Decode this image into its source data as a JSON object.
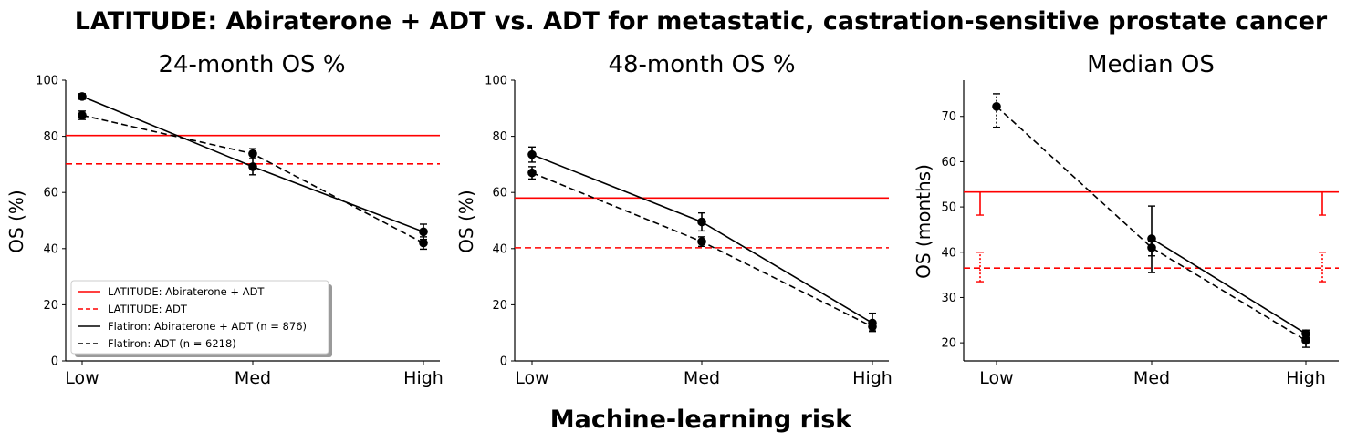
{
  "figure": {
    "title": "LATITUDE: Abiraterone + ADT vs. ADT for metastatic, castration-sensitive prostate cancer",
    "xlabel": "Machine-learning risk"
  },
  "legend": {
    "placement": "lower-left of first panel",
    "entries": [
      {
        "label": "LATITUDE: Abiraterone + ADT",
        "color": "#ff0000",
        "dash": "solid"
      },
      {
        "label": "LATITUDE: ADT",
        "color": "#ff0000",
        "dash": "dashed"
      },
      {
        "label": "Flatiron: Abiraterone + ADT (n = 876)",
        "color": "#000000",
        "dash": "solid"
      },
      {
        "label": "Flatiron: ADT (n = 6218)",
        "color": "#000000",
        "dash": "dashed"
      }
    ]
  },
  "chart_data": [
    {
      "type": "line",
      "title": "24-month OS %",
      "ylabel": "OS (%)",
      "categories": [
        "Low",
        "Med",
        "High"
      ],
      "ylim": [
        0,
        100
      ],
      "yticks": [
        0,
        20,
        40,
        60,
        80,
        100
      ],
      "series": [
        {
          "name": "Flatiron: Abiraterone + ADT (n = 876)",
          "color": "#000000",
          "dash": "solid",
          "values": [
            94.2,
            69.2,
            46.0
          ],
          "err_low": [
            93.2,
            66.3,
            43.3
          ],
          "err_high": [
            95.2,
            72.1,
            48.7
          ]
        },
        {
          "name": "Flatiron: ADT (n = 6218)",
          "color": "#000000",
          "dash": "dashed",
          "values": [
            87.5,
            73.8,
            42.0
          ],
          "err_low": [
            86.0,
            72.0,
            39.8
          ],
          "err_high": [
            89.0,
            75.6,
            44.2
          ]
        }
      ],
      "reference_lines": [
        {
          "name": "LATITUDE: Abiraterone + ADT",
          "value": 80.3,
          "color": "#ff0000",
          "dash": "solid"
        },
        {
          "name": "LATITUDE: ADT",
          "value": 70.2,
          "color": "#ff0000",
          "dash": "dashed"
        }
      ]
    },
    {
      "type": "line",
      "title": "48-month OS %",
      "ylabel": "OS (%)",
      "categories": [
        "Low",
        "Med",
        "High"
      ],
      "ylim": [
        0,
        100
      ],
      "yticks": [
        0,
        20,
        40,
        60,
        80,
        100
      ],
      "series": [
        {
          "name": "Flatiron: Abiraterone + ADT (n = 876)",
          "color": "#000000",
          "dash": "solid",
          "values": [
            73.5,
            49.5,
            13.5
          ],
          "err_low": [
            70.8,
            46.3,
            10.5
          ],
          "err_high": [
            76.2,
            52.7,
            17.0
          ]
        },
        {
          "name": "Flatiron: ADT (n = 6218)",
          "color": "#000000",
          "dash": "dashed",
          "values": [
            67.0,
            42.5,
            12.2
          ],
          "err_low": [
            64.8,
            40.8,
            10.7
          ],
          "err_high": [
            69.2,
            44.2,
            13.7
          ]
        }
      ],
      "reference_lines": [
        {
          "name": "LATITUDE: Abiraterone + ADT",
          "value": 58.0,
          "color": "#ff0000",
          "dash": "solid"
        },
        {
          "name": "LATITUDE: ADT",
          "value": 40.3,
          "color": "#ff0000",
          "dash": "dashed"
        }
      ]
    },
    {
      "type": "line",
      "title": "Median OS",
      "ylabel": "OS (months)",
      "categories": [
        "Low",
        "Med",
        "High"
      ],
      "ylim": [
        16,
        78
      ],
      "yticks": [
        20,
        30,
        40,
        50,
        60,
        70
      ],
      "series": [
        {
          "name": "Flatiron: Abiraterone + ADT (n = 876)",
          "color": "#000000",
          "dash": "solid",
          "values": [
            null,
            43.0,
            22.0
          ],
          "err_low": [
            null,
            39.2,
            21.2
          ],
          "err_high": [
            null,
            50.2,
            22.8
          ]
        },
        {
          "name": "Flatiron: ADT (n = 6218)",
          "color": "#000000",
          "dash": "dashed",
          "values": [
            72.2,
            41.0,
            20.5
          ],
          "err_low": [
            67.6,
            35.5,
            19.0
          ],
          "err_high": [
            75.0,
            42.5,
            21.2
          ]
        }
      ],
      "reference_lines": [
        {
          "name": "LATITUDE: Abiraterone + ADT",
          "value": 53.3,
          "color": "#ff0000",
          "dash": "solid",
          "err_low": 48.2,
          "err_high": 53.3
        },
        {
          "name": "LATITUDE: ADT",
          "value": 36.5,
          "color": "#ff0000",
          "dash": "dashed",
          "err_low": 33.5,
          "err_high": 40.0
        }
      ]
    }
  ]
}
